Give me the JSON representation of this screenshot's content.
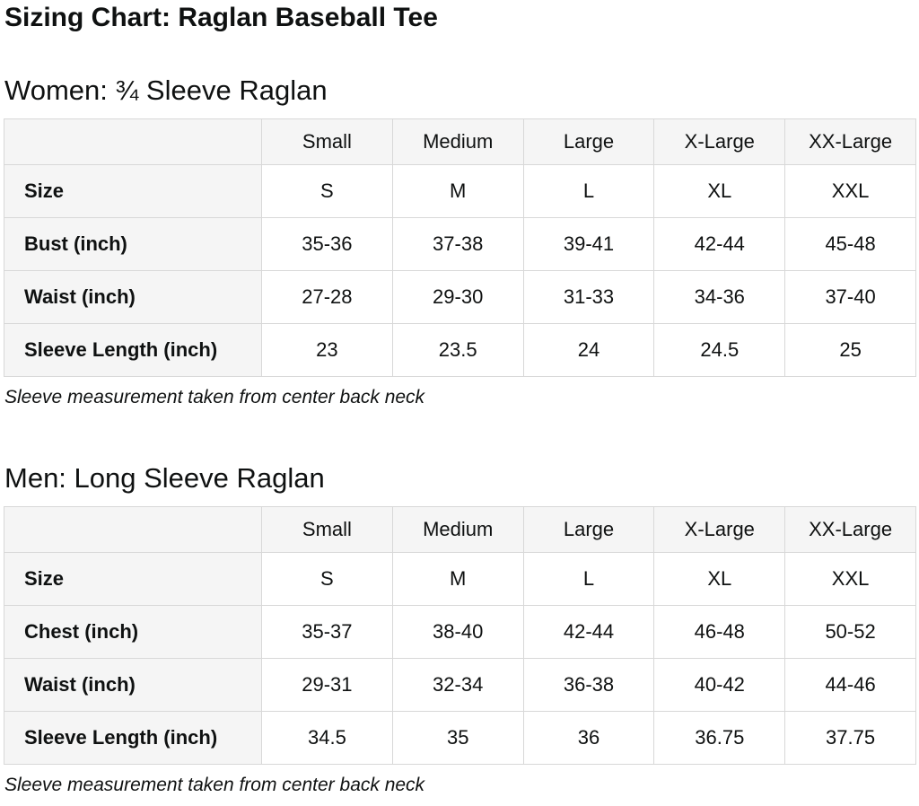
{
  "page": {
    "title": "Sizing Chart: Raglan Baseball Tee"
  },
  "colors": {
    "text": "#0f1111",
    "table_border": "#d8d8d8",
    "header_cell_bg": "#f5f5f5",
    "page_bg": "#ffffff"
  },
  "sections": [
    {
      "heading": "Women: ¾ Sleeve Raglan",
      "note": "Sleeve measurement taken from center back neck",
      "table": {
        "column_headers": [
          "",
          "Small",
          "Medium",
          "Large",
          "X-Large",
          "XX-Large"
        ],
        "rows": [
          {
            "label": "Size",
            "values": [
              "S",
              "M",
              "L",
              "XL",
              "XXL"
            ]
          },
          {
            "label": "Bust (inch)",
            "values": [
              "35-36",
              "37-38",
              "39-41",
              "42-44",
              "45-48"
            ]
          },
          {
            "label": "Waist (inch)",
            "values": [
              "27-28",
              "29-30",
              "31-33",
              "34-36",
              "37-40"
            ]
          },
          {
            "label": "Sleeve Length (inch)",
            "values": [
              "23",
              "23.5",
              "24",
              "24.5",
              "25"
            ]
          }
        ]
      }
    },
    {
      "heading": "Men: Long Sleeve Raglan",
      "note": "Sleeve measurement taken from center back neck",
      "table": {
        "column_headers": [
          "",
          "Small",
          "Medium",
          "Large",
          "X-Large",
          "XX-Large"
        ],
        "rows": [
          {
            "label": "Size",
            "values": [
              "S",
              "M",
              "L",
              "XL",
              "XXL"
            ]
          },
          {
            "label": "Chest (inch)",
            "values": [
              "35-37",
              "38-40",
              "42-44",
              "46-48",
              "50-52"
            ]
          },
          {
            "label": "Waist (inch)",
            "values": [
              "29-31",
              "32-34",
              "36-38",
              "40-42",
              "44-46"
            ]
          },
          {
            "label": "Sleeve Length (inch)",
            "values": [
              "34.5",
              "35",
              "36",
              "36.75",
              "37.75"
            ]
          }
        ]
      }
    }
  ]
}
